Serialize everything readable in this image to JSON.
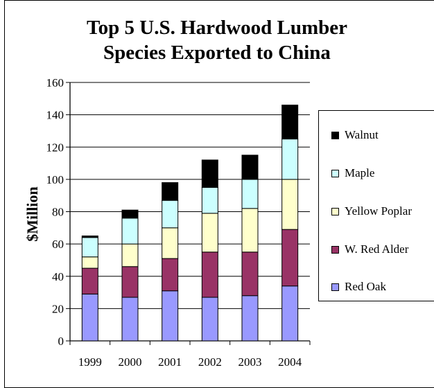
{
  "chart_data": {
    "type": "bar",
    "stacked": true,
    "title_line1": "Top 5 U.S. Hardwood Lumber",
    "title_line2": "Species Exported to China",
    "ylabel": "$Million",
    "xlabel": "",
    "ylim": [
      0,
      160
    ],
    "yticks": [
      0,
      20,
      40,
      60,
      80,
      100,
      120,
      140,
      160
    ],
    "grid": true,
    "legend_position": "right",
    "categories": [
      "1999",
      "2000",
      "2001",
      "2002",
      "2003",
      "2004"
    ],
    "series": [
      {
        "name": "Red Oak",
        "color": "#9999ff",
        "values": [
          29,
          27,
          31,
          27,
          28,
          34
        ]
      },
      {
        "name": "W. Red Alder",
        "color": "#993366",
        "values": [
          16,
          19,
          20,
          28,
          27,
          35
        ]
      },
      {
        "name": "Yellow Poplar",
        "color": "#ffffcc",
        "values": [
          7,
          14,
          19,
          24,
          27,
          31
        ]
      },
      {
        "name": "Maple",
        "color": "#ccffff",
        "values": [
          12,
          16,
          17,
          16,
          18,
          25
        ]
      },
      {
        "name": "Walnut",
        "color": "#000000",
        "values": [
          1,
          5,
          11,
          17,
          15,
          21
        ]
      }
    ]
  }
}
